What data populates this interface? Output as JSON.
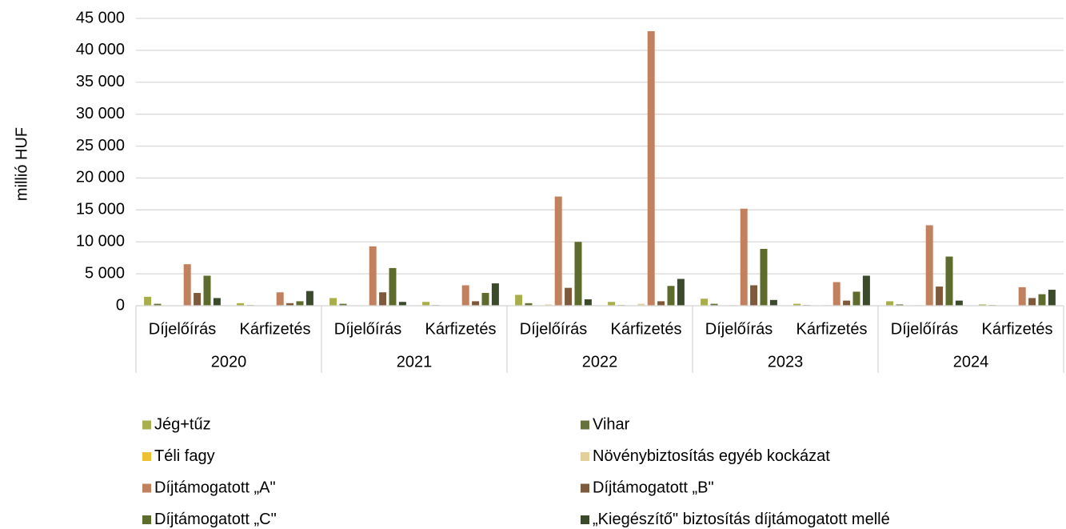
{
  "chart_data": {
    "type": "bar",
    "y_axis_label": "millió HUF",
    "categories": [
      "Díjelőírás",
      "Kárfizetés",
      "Díjelőírás",
      "Kárfizetés",
      "Díjelőírás",
      "Kárfizetés",
      "Díjelőírás",
      "Kárfizetés",
      "Díjelőírás",
      "Kárfizetés"
    ],
    "category_groups": [
      "2020",
      "2021",
      "2022",
      "2023",
      "2024"
    ],
    "series": [
      {
        "name": "Jég+tűz",
        "color": "#a9ae4c",
        "values": [
          1400,
          400,
          1200,
          600,
          1700,
          600,
          1100,
          300,
          700,
          200
        ]
      },
      {
        "name": "Vihar",
        "color": "#66723c",
        "values": [
          300,
          100,
          300,
          100,
          400,
          100,
          300,
          100,
          200,
          100
        ]
      },
      {
        "name": "Téli fagy",
        "color": "#efc132",
        "values": [
          0,
          0,
          0,
          0,
          0,
          0,
          0,
          0,
          0,
          0
        ]
      },
      {
        "name": "Növénybiztosítás egyéb kockázat",
        "color": "#e3cf9c",
        "values": [
          50,
          50,
          50,
          50,
          200,
          300,
          100,
          100,
          100,
          50
        ]
      },
      {
        "name": "Díjtámogatott „A\"",
        "color": "#c1815f",
        "values": [
          6500,
          2100,
          9300,
          3200,
          17100,
          43000,
          15200,
          3700,
          12600,
          2900
        ]
      },
      {
        "name": "Díjtámogatott „B\"",
        "color": "#7c5a3b",
        "values": [
          2000,
          400,
          2100,
          700,
          2800,
          700,
          3200,
          800,
          3000,
          1200
        ]
      },
      {
        "name": "Díjtámogatott „C\"",
        "color": "#5d6c2c",
        "values": [
          4700,
          700,
          5900,
          2000,
          10000,
          3100,
          8900,
          2200,
          7700,
          1800
        ]
      },
      {
        "name": "„Kiegészítő\" biztosítás díjtámogatott mellé",
        "color": "#3b4a2a",
        "values": [
          1200,
          2300,
          600,
          3500,
          1000,
          4200,
          900,
          4700,
          800,
          2500
        ]
      }
    ],
    "ylim": [
      0,
      45000
    ],
    "yticks": [
      0,
      {
        "value": 5000,
        "label": "5 000"
      },
      {
        "value": 10000,
        "label": "10 000"
      },
      {
        "value": 15000,
        "label": "15 000"
      },
      {
        "value": 20000,
        "label": "20 000"
      },
      {
        "value": 25000,
        "label": "25 000"
      },
      {
        "value": 30000,
        "label": "30 000"
      },
      {
        "value": 35000,
        "label": "35 000"
      },
      {
        "value": 40000,
        "label": "40 000"
      },
      {
        "value": 45000,
        "label": "45 000"
      }
    ],
    "grid": true
  }
}
